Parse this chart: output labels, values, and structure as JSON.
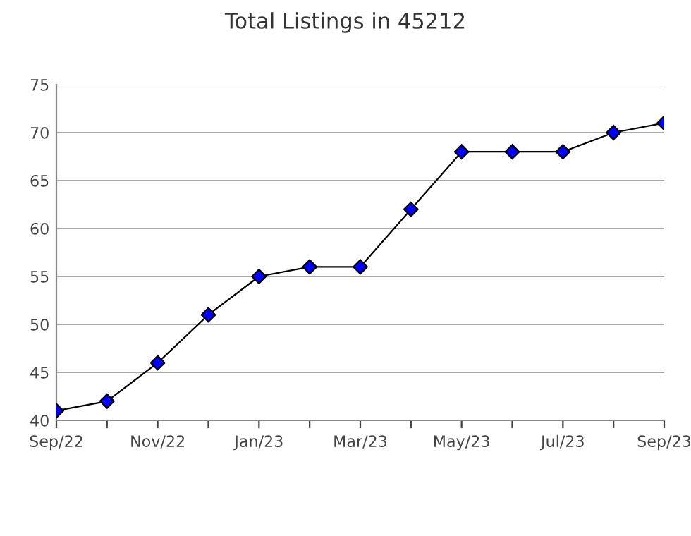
{
  "chart_data": {
    "type": "line",
    "title": "Total Listings in 45212",
    "categories": [
      "Sep/22",
      null,
      "Nov/22",
      null,
      "Jan/23",
      null,
      "Mar/23",
      null,
      "May/23",
      null,
      "Jul/23",
      null,
      "Sep/23"
    ],
    "series": [
      {
        "color": "#0000ff",
        "values": [
          41,
          42,
          46,
          51,
          55,
          56,
          56,
          62,
          68,
          68,
          68,
          70,
          71
        ]
      }
    ],
    "ylim": [
      40,
      75
    ],
    "yticks": [
      40,
      45,
      50,
      55,
      60,
      65,
      70,
      75
    ],
    "grid": "y",
    "marker": "diamond",
    "line_style": "solid",
    "legend": false
  }
}
